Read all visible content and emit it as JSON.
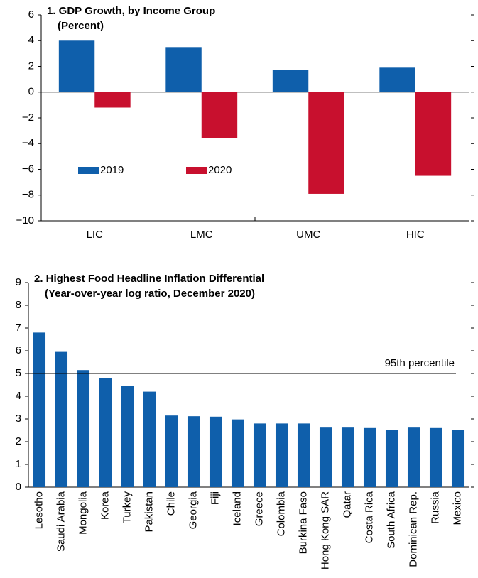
{
  "chart_data": [
    {
      "type": "grouped-bar",
      "title": "1. GDP Growth, by Income Group",
      "subtitle": "(Percent)",
      "categories": [
        "LIC",
        "LMC",
        "UMC",
        "HIC"
      ],
      "series": [
        {
          "name": "2019",
          "color": "#0f5fab",
          "values": [
            4.0,
            3.5,
            1.7,
            1.9
          ]
        },
        {
          "name": "2020",
          "color": "#c8102e",
          "values": [
            -1.2,
            -3.6,
            -7.9,
            -6.5
          ]
        }
      ],
      "ylim": [
        -10,
        6
      ],
      "yticks": [
        {
          "value": -10,
          "label": "−10"
        },
        {
          "value": -8,
          "label": "−8"
        },
        {
          "value": -6,
          "label": "−6"
        },
        {
          "value": -4,
          "label": "−4"
        },
        {
          "value": -2,
          "label": "−2"
        },
        0,
        2,
        4,
        6
      ],
      "legend": "lower left"
    },
    {
      "type": "bar",
      "title": "2. Highest Food Headline Inflation Differential",
      "subtitle": "(Year-over-year log ratio, December 2020)",
      "categories": [
        "Lesotho",
        "Saudi Arabia",
        "Mongolia",
        "Korea",
        "Turkey",
        "Pakistan",
        "Chile",
        "Georgia",
        "Fiji",
        "Iceland",
        "Greece",
        "Colombia",
        "Burkina Faso",
        "Hong Kong SAR",
        "Qatar",
        "Costa Rica",
        "South Africa",
        "Dominican Rep.",
        "Russia",
        "Mexico"
      ],
      "values": [
        6.8,
        5.95,
        5.15,
        4.8,
        4.45,
        4.2,
        3.15,
        3.12,
        3.1,
        2.98,
        2.8,
        2.8,
        2.8,
        2.62,
        2.62,
        2.6,
        2.52,
        2.62,
        2.6,
        2.52
      ],
      "color": "#0f5fab",
      "ylim": [
        0,
        9
      ],
      "yticks": [
        0,
        1,
        2,
        3,
        4,
        5,
        6,
        7,
        8,
        9
      ],
      "reference_line": {
        "value": 5,
        "label": "95th percentile"
      }
    }
  ]
}
